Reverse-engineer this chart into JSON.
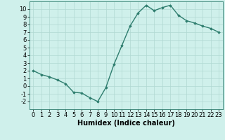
{
  "x": [
    0,
    1,
    2,
    3,
    4,
    5,
    6,
    7,
    8,
    9,
    10,
    11,
    12,
    13,
    14,
    15,
    16,
    17,
    18,
    19,
    20,
    21,
    22,
    23
  ],
  "y": [
    2,
    1.5,
    1.2,
    0.8,
    0.3,
    -0.8,
    -0.9,
    -1.5,
    -2,
    -0.2,
    2.8,
    5.3,
    7.8,
    9.5,
    10.5,
    9.8,
    10.2,
    10.5,
    9.2,
    8.5,
    8.2,
    7.8,
    7.5,
    7.0
  ],
  "line_color": "#2e7d6e",
  "marker": "D",
  "marker_size": 1.8,
  "linewidth": 1.0,
  "xlabel": "Humidex (Indice chaleur)",
  "xlim": [
    -0.5,
    23.5
  ],
  "ylim": [
    -3,
    11
  ],
  "yticks": [
    -2,
    -1,
    0,
    1,
    2,
    3,
    4,
    5,
    6,
    7,
    8,
    9,
    10
  ],
  "xticks": [
    0,
    1,
    2,
    3,
    4,
    5,
    6,
    7,
    8,
    9,
    10,
    11,
    12,
    13,
    14,
    15,
    16,
    17,
    18,
    19,
    20,
    21,
    22,
    23
  ],
  "bg_color": "#cff0eb",
  "grid_color": "#b0d8d2",
  "xlabel_fontsize": 7,
  "tick_fontsize": 6
}
